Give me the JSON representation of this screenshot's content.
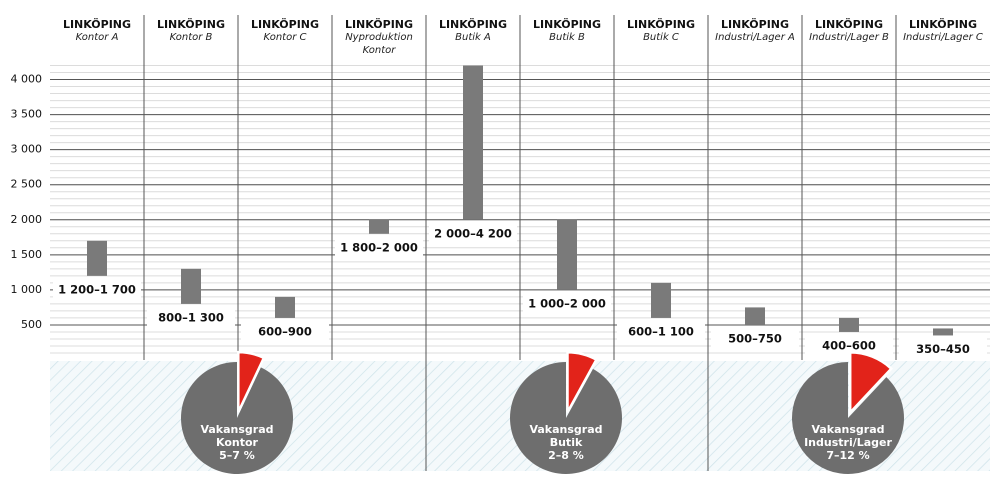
{
  "chart_data": {
    "type": "range-bar",
    "city": "LINKÖPING",
    "categories": [
      "Kontor A",
      "Kontor B",
      "Kontor C",
      "Nyproduktion Kontor",
      "Butik A",
      "Butik B",
      "Butik C",
      "Industri/Lager A",
      "Industri/Lager B",
      "Industri/Lager C"
    ],
    "low": [
      1200,
      800,
      600,
      1800,
      2000,
      1000,
      600,
      500,
      400,
      350
    ],
    "high": [
      1700,
      1300,
      900,
      2000,
      4200,
      2000,
      1100,
      750,
      600,
      450
    ],
    "value_labels": [
      "1 200–1 700",
      "800–1 300",
      "600–900",
      "1 800–2 000",
      "2 000–4 200",
      "1 000–2 000",
      "600–1 100",
      "500–750",
      "400–600",
      "350–450"
    ],
    "color": "#7a7a7a",
    "ylim": [
      0,
      4250
    ],
    "yticks": [
      500,
      {
        "value": 1000,
        "label": "1 000"
      },
      {
        "value": 1500,
        "label": "1 500"
      },
      {
        "value": 2000,
        "label": "2 000"
      },
      {
        "value": 2500,
        "label": "2 500"
      },
      {
        "value": 3000,
        "label": "3 000"
      },
      {
        "value": 3500,
        "label": "3 500"
      },
      {
        "value": 4000,
        "label": "4 000"
      }
    ],
    "grid": true,
    "pies": [
      {
        "type": "pie",
        "title": "Vakansgrad",
        "segment": "Kontor",
        "values": [
          5,
          7
        ],
        "value_label": "5–7 %",
        "color": "#e2231a",
        "rest_color": "#6e6e6e"
      },
      {
        "type": "pie",
        "title": "Vakansgrad",
        "segment": "Butik",
        "values": [
          2,
          8
        ],
        "value_label": "2–8 %",
        "color": "#e2231a",
        "rest_color": "#6e6e6e"
      },
      {
        "type": "pie",
        "title": "Vakansgrad",
        "segment": "Industri/Lager",
        "values": [
          7,
          12
        ],
        "value_label": "7–12 %",
        "color": "#e2231a",
        "rest_color": "#6e6e6e"
      }
    ]
  }
}
